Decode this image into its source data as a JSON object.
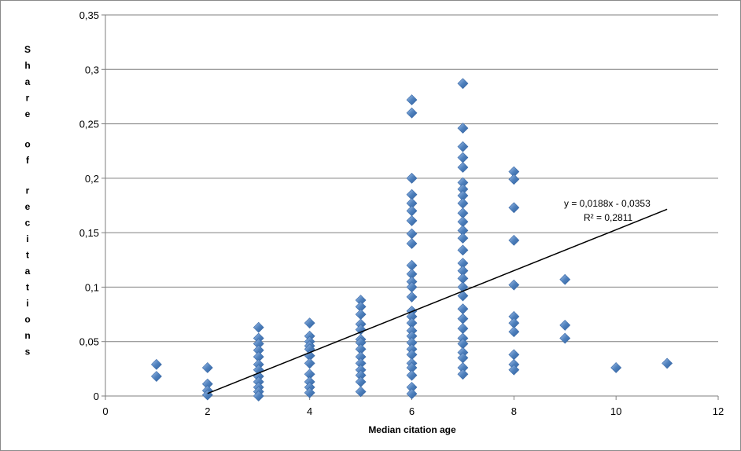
{
  "chart_data": {
    "type": "scatter",
    "title": "",
    "xlabel": "Median citation age",
    "ylabel": "Share of recitations",
    "xlim": [
      0,
      12
    ],
    "ylim": [
      0,
      0.35
    ],
    "x_ticks": [
      "0",
      "2",
      "4",
      "6",
      "8",
      "10",
      "12"
    ],
    "y_ticks": [
      "0",
      "0,05",
      "0,1",
      "0,15",
      "0,2",
      "0,25",
      "0,3",
      "0,35"
    ],
    "grid": "horizontal",
    "legend": "none",
    "marker_color": "#4f81bd",
    "trendline": {
      "slope": 0.0188,
      "intercept": -0.0353,
      "x_range": [
        2,
        11
      ],
      "equation": "y = 0,0188x - 0,0353",
      "r2": "R² = 0,2811",
      "color": "#000000"
    },
    "points": [
      [
        1,
        0.029
      ],
      [
        1,
        0.018
      ],
      [
        2,
        0.026
      ],
      [
        2,
        0.011
      ],
      [
        2,
        0.005
      ],
      [
        2,
        0.001
      ],
      [
        3,
        0.063
      ],
      [
        3,
        0.053
      ],
      [
        3,
        0.048
      ],
      [
        3,
        0.042
      ],
      [
        3,
        0.036
      ],
      [
        3,
        0.029
      ],
      [
        3,
        0.024
      ],
      [
        3,
        0.018
      ],
      [
        3,
        0.013
      ],
      [
        3,
        0.008
      ],
      [
        3,
        0.004
      ],
      [
        3,
        0.0
      ],
      [
        4,
        0.067
      ],
      [
        4,
        0.055
      ],
      [
        4,
        0.05
      ],
      [
        4,
        0.046
      ],
      [
        4,
        0.043
      ],
      [
        4,
        0.037
      ],
      [
        4,
        0.03
      ],
      [
        4,
        0.02
      ],
      [
        4,
        0.013
      ],
      [
        4,
        0.008
      ],
      [
        4,
        0.003
      ],
      [
        5,
        0.088
      ],
      [
        5,
        0.082
      ],
      [
        5,
        0.075
      ],
      [
        5,
        0.066
      ],
      [
        5,
        0.061
      ],
      [
        5,
        0.052
      ],
      [
        5,
        0.049
      ],
      [
        5,
        0.043
      ],
      [
        5,
        0.036
      ],
      [
        5,
        0.03
      ],
      [
        5,
        0.024
      ],
      [
        5,
        0.019
      ],
      [
        5,
        0.013
      ],
      [
        5,
        0.004
      ],
      [
        6,
        0.272
      ],
      [
        6,
        0.26
      ],
      [
        6,
        0.2
      ],
      [
        6,
        0.185
      ],
      [
        6,
        0.177
      ],
      [
        6,
        0.17
      ],
      [
        6,
        0.161
      ],
      [
        6,
        0.149
      ],
      [
        6,
        0.14
      ],
      [
        6,
        0.12
      ],
      [
        6,
        0.112
      ],
      [
        6,
        0.105
      ],
      [
        6,
        0.1
      ],
      [
        6,
        0.091
      ],
      [
        6,
        0.078
      ],
      [
        6,
        0.073
      ],
      [
        6,
        0.067
      ],
      [
        6,
        0.06
      ],
      [
        6,
        0.055
      ],
      [
        6,
        0.049
      ],
      [
        6,
        0.043
      ],
      [
        6,
        0.038
      ],
      [
        6,
        0.03
      ],
      [
        6,
        0.026
      ],
      [
        6,
        0.019
      ],
      [
        6,
        0.008
      ],
      [
        6,
        0.002
      ],
      [
        7,
        0.287
      ],
      [
        7,
        0.246
      ],
      [
        7,
        0.229
      ],
      [
        7,
        0.219
      ],
      [
        7,
        0.21
      ],
      [
        7,
        0.196
      ],
      [
        7,
        0.19
      ],
      [
        7,
        0.184
      ],
      [
        7,
        0.177
      ],
      [
        7,
        0.168
      ],
      [
        7,
        0.16
      ],
      [
        7,
        0.152
      ],
      [
        7,
        0.145
      ],
      [
        7,
        0.134
      ],
      [
        7,
        0.122
      ],
      [
        7,
        0.115
      ],
      [
        7,
        0.108
      ],
      [
        7,
        0.1
      ],
      [
        7,
        0.092
      ],
      [
        7,
        0.08
      ],
      [
        7,
        0.071
      ],
      [
        7,
        0.062
      ],
      [
        7,
        0.053
      ],
      [
        7,
        0.048
      ],
      [
        7,
        0.04
      ],
      [
        7,
        0.035
      ],
      [
        7,
        0.026
      ],
      [
        7,
        0.02
      ],
      [
        8,
        0.206
      ],
      [
        8,
        0.199
      ],
      [
        8,
        0.173
      ],
      [
        8,
        0.143
      ],
      [
        8,
        0.102
      ],
      [
        8,
        0.073
      ],
      [
        8,
        0.067
      ],
      [
        8,
        0.059
      ],
      [
        8,
        0.038
      ],
      [
        8,
        0.029
      ],
      [
        8,
        0.024
      ],
      [
        9,
        0.107
      ],
      [
        9,
        0.065
      ],
      [
        9,
        0.053
      ],
      [
        10,
        0.026
      ],
      [
        11,
        0.03
      ]
    ]
  }
}
